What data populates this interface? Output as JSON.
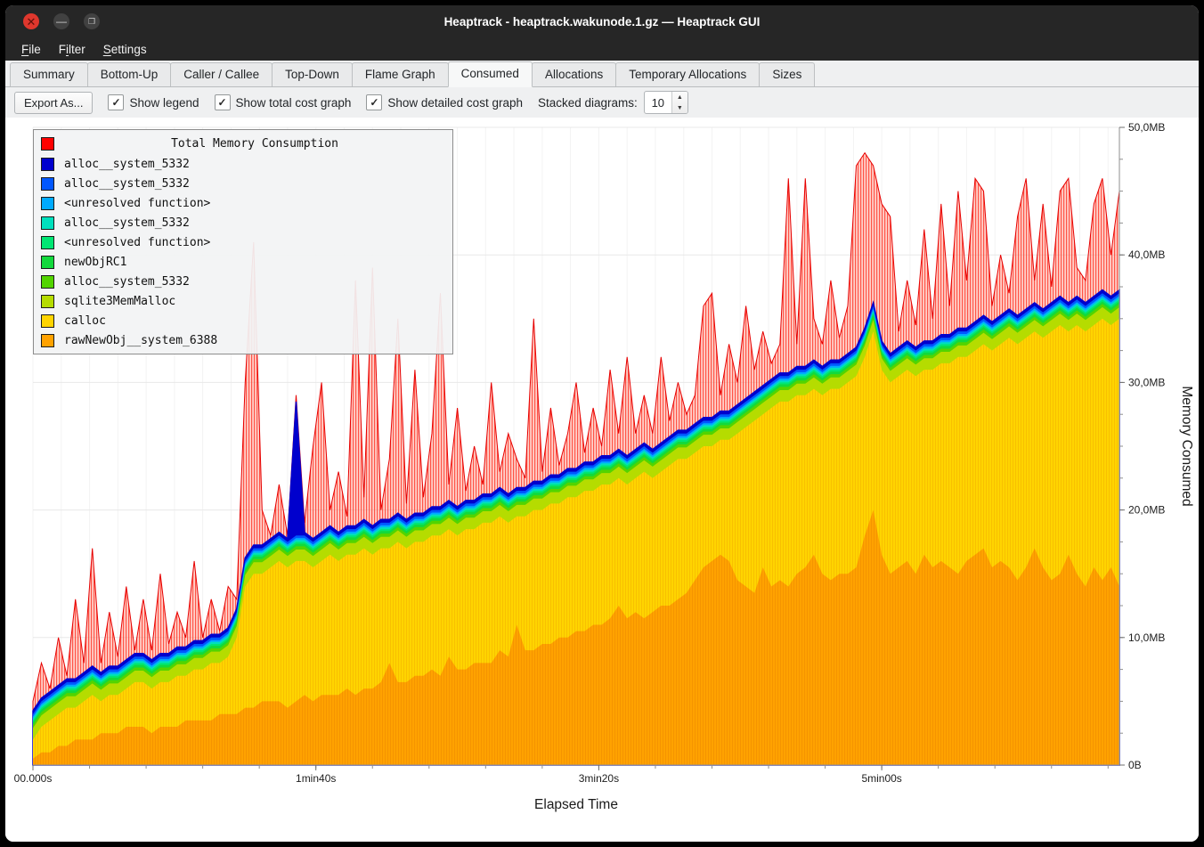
{
  "window": {
    "title": "Heaptrack - heaptrack.wakunode.1.gz — Heaptrack GUI"
  },
  "titlebar": {
    "close_glyph": "✕",
    "minimize_glyph": "—",
    "maximize_glyph": "❐"
  },
  "menu": {
    "items": [
      {
        "label": "File",
        "mnemonic": 0
      },
      {
        "label": "Filter",
        "mnemonic": 1
      },
      {
        "label": "Settings",
        "mnemonic": 0
      }
    ]
  },
  "tabs": {
    "active": "Consumed",
    "items": [
      "Summary",
      "Bottom-Up",
      "Caller / Callee",
      "Top-Down",
      "Flame Graph",
      "Consumed",
      "Allocations",
      "Temporary Allocations",
      "Sizes"
    ]
  },
  "toolbar": {
    "export_label": "Export As...",
    "checkboxes": [
      {
        "label": "Show legend",
        "checked": true
      },
      {
        "label": "Show total cost graph",
        "checked": true
      },
      {
        "label": "Show detailed cost graph",
        "checked": true
      }
    ],
    "check_glyph": "✓",
    "stacked_label": "Stacked diagrams:",
    "stacked_value": "10",
    "spin_up_glyph": "▲",
    "spin_down_glyph": "▼"
  },
  "chart_data": {
    "type": "area",
    "xlabel": "Elapsed Time",
    "ylabel": "Memory Consumed",
    "y_max": 50,
    "step_s": 3,
    "x_ticks": [
      {
        "t": 0,
        "label": "00.000s"
      },
      {
        "t": 100,
        "label": "1min40s"
      },
      {
        "t": 200,
        "label": "3min20s"
      },
      {
        "t": 300,
        "label": "5min00s"
      }
    ],
    "y_ticks": [
      {
        "v": 0,
        "label": "0B"
      },
      {
        "v": 10,
        "label": "10,0MB"
      },
      {
        "v": 20,
        "label": "20,0MB"
      },
      {
        "v": 30,
        "label": "30,0MB"
      },
      {
        "v": 40,
        "label": "40,0MB"
      },
      {
        "v": 50,
        "label": "50,0MB"
      }
    ],
    "legend": {
      "title": "Total Memory Consumption",
      "title_color": "#ff0000",
      "entries": [
        {
          "label": "alloc__system_5332",
          "color": "#0000cd"
        },
        {
          "label": "alloc__system_5332",
          "color": "#0057ff"
        },
        {
          "label": "<unresolved function>",
          "color": "#00aaff"
        },
        {
          "label": "alloc__system_5332",
          "color": "#00e0bd"
        },
        {
          "label": "<unresolved function>",
          "color": "#00e673"
        },
        {
          "label": "newObjRC1",
          "color": "#12d93c"
        },
        {
          "label": "alloc__system_5332",
          "color": "#52d400"
        },
        {
          "label": "sqlite3MemMalloc",
          "color": "#b5dc00"
        },
        {
          "label": "calloc",
          "color": "#ffd400"
        },
        {
          "label": "rawNewObj__system_6388",
          "color": "#ffa200"
        }
      ]
    },
    "bands": [
      {
        "label": "alloc__system_5332",
        "color": "#0000cd",
        "offset": 2.25
      },
      {
        "label": "alloc__system_5332",
        "color": "#0057ff",
        "offset": 2.0
      },
      {
        "label": "<unresolved function>",
        "color": "#00aaff",
        "offset": 1.8
      },
      {
        "label": "alloc__system_5332",
        "color": "#00e0bd",
        "offset": 1.65
      },
      {
        "label": "<unresolved function>",
        "color": "#00e673",
        "offset": 1.5
      },
      {
        "label": "newObjRC1",
        "color": "#12d93c",
        "offset": 1.35
      },
      {
        "label": "alloc__system_5332",
        "color": "#52d400",
        "offset": 1.15
      },
      {
        "label": "sqlite3MemMalloc",
        "color": "#b5dc00",
        "offset": 0.9
      }
    ],
    "dark_spike": {
      "i": 31,
      "v": 28.5
    },
    "total_color": "#e60000",
    "base": [
      2,
      3,
      3.5,
      4,
      4.5,
      4.5,
      5,
      5.5,
      5,
      5.5,
      5.5,
      6,
      6.5,
      6.5,
      6,
      6.5,
      6.5,
      7,
      7,
      7.5,
      7.5,
      8,
      8,
      8.5,
      10,
      14,
      15,
      15,
      15.5,
      16,
      15.5,
      16,
      16,
      15.5,
      16,
      16.5,
      16,
      16.5,
      16.5,
      17,
      16.5,
      17,
      17,
      17.5,
      17,
      17.5,
      17.5,
      18,
      18,
      18.5,
      18,
      18.5,
      18.5,
      19,
      19,
      19.5,
      19,
      19.5,
      19.5,
      20,
      20,
      20.5,
      20.5,
      21,
      21,
      21.5,
      21.5,
      22,
      22,
      22.5,
      22,
      22.5,
      23,
      22.5,
      23,
      23.5,
      24,
      24,
      24.5,
      25,
      25,
      25.5,
      25.5,
      26,
      26.5,
      27,
      27.5,
      28,
      28.5,
      28.5,
      29,
      29,
      29.5,
      29,
      29.5,
      29.5,
      30,
      30.5,
      32,
      34,
      31,
      30,
      30.5,
      31,
      30.5,
      31,
      31,
      31.5,
      31.5,
      32,
      32,
      32.5,
      33,
      32.5,
      33,
      33.5,
      33,
      33.5,
      34,
      33.5,
      34,
      34.5,
      34,
      34.5,
      34,
      34.5,
      35,
      34.5,
      35
    ],
    "orange": [
      0.5,
      1,
      1,
      1.5,
      1.5,
      2,
      2,
      2,
      2.5,
      2.5,
      2.5,
      3,
      3,
      3,
      2.5,
      3,
      3,
      3,
      3.5,
      3.5,
      3.5,
      3.5,
      4,
      4,
      4,
      4.5,
      4.5,
      5,
      5,
      5,
      4.5,
      5,
      5.5,
      5,
      5.5,
      5.5,
      5.5,
      6,
      5.5,
      6,
      6,
      6.5,
      8,
      6.5,
      6.5,
      7,
      7,
      7.5,
      7,
      8.5,
      7.5,
      7.5,
      8,
      8,
      8,
      9,
      8.5,
      11,
      9,
      9,
      9.5,
      9.5,
      10,
      10,
      10.5,
      10.5,
      11,
      11,
      11.5,
      12.5,
      11.5,
      12,
      11.5,
      12,
      12.5,
      12.5,
      13,
      13.5,
      14.5,
      15.5,
      16,
      16.5,
      16,
      14.5,
      14,
      13.5,
      15.5,
      14,
      14.5,
      14,
      15,
      15.5,
      16.5,
      15,
      14.5,
      15,
      15,
      15.5,
      18,
      20,
      16.5,
      15,
      15.5,
      16,
      15,
      16.5,
      15.5,
      16,
      15.5,
      15,
      16,
      16.5,
      17,
      15.5,
      16,
      15.5,
      14.5,
      15.5,
      17,
      15.5,
      14.5,
      15,
      16.5,
      15,
      14,
      15.5,
      14.5,
      15.5,
      14
    ],
    "total": [
      5,
      8,
      6,
      10,
      7,
      13,
      8,
      17,
      8,
      12,
      8.5,
      14,
      9,
      13,
      9,
      15,
      9.5,
      12,
      10,
      16,
      10,
      13,
      10.5,
      14,
      13,
      30,
      41,
      20,
      18,
      22,
      18,
      29,
      19,
      25,
      30,
      20,
      23,
      19.5,
      38,
      21,
      39,
      20,
      24,
      35,
      20.5,
      31,
      21,
      26,
      37,
      22,
      28,
      21.5,
      25,
      22,
      30,
      23,
      26,
      24,
      22.5,
      35,
      23,
      28,
      23.5,
      26,
      30,
      24.5,
      28,
      25,
      31,
      26,
      32,
      26,
      29,
      26,
      32,
      27,
      30,
      27.5,
      29,
      36,
      37,
      29,
      33,
      30,
      36,
      31,
      34,
      31.5,
      33,
      46,
      33,
      46,
      35,
      33,
      38,
      33.5,
      36,
      47,
      48,
      47,
      44,
      43,
      34,
      38,
      34.5,
      42,
      35,
      44,
      36,
      45,
      38,
      46,
      45,
      36,
      40,
      37,
      43,
      46,
      38,
      44,
      37.5,
      45,
      46,
      39,
      38,
      44,
      46,
      40,
      45
    ]
  }
}
